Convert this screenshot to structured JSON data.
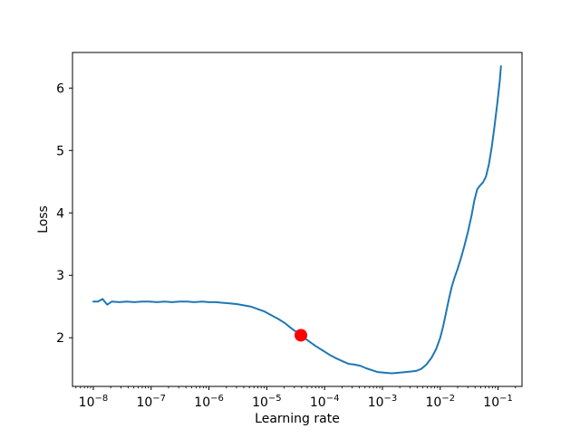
{
  "chart_data": {
    "type": "line",
    "title": "",
    "xlabel": "Learning rate",
    "ylabel": "Loss",
    "xscale": "log",
    "yscale": "linear",
    "grid": false,
    "legend": "none",
    "xlim_log10": [
      -8.36,
      -0.586
    ],
    "ylim": [
      1.22,
      6.57
    ],
    "xticks": [
      {
        "base": "10",
        "exp": "−8",
        "log10": -8
      },
      {
        "base": "10",
        "exp": "−7",
        "log10": -7
      },
      {
        "base": "10",
        "exp": "−6",
        "log10": -6
      },
      {
        "base": "10",
        "exp": "−5",
        "log10": -5
      },
      {
        "base": "10",
        "exp": "−4",
        "log10": -4
      },
      {
        "base": "10",
        "exp": "−3",
        "log10": -3
      },
      {
        "base": "10",
        "exp": "−2",
        "log10": -2
      },
      {
        "base": "10",
        "exp": "−1",
        "log10": -1
      }
    ],
    "yticks": [
      {
        "value": 2,
        "label": "2"
      },
      {
        "value": 3,
        "label": "3"
      },
      {
        "value": 4,
        "label": "4"
      },
      {
        "value": 5,
        "label": "5"
      },
      {
        "value": 6,
        "label": "6"
      }
    ],
    "line_color": "#1f77b4",
    "line_width": 2,
    "series_points_x_is_log10": true,
    "points": [
      [
        -8.0,
        2.58
      ],
      [
        -7.92,
        2.58
      ],
      [
        -7.84,
        2.62
      ],
      [
        -7.76,
        2.53
      ],
      [
        -7.68,
        2.58
      ],
      [
        -7.55,
        2.57
      ],
      [
        -7.42,
        2.58
      ],
      [
        -7.29,
        2.57
      ],
      [
        -7.16,
        2.58
      ],
      [
        -7.03,
        2.58
      ],
      [
        -6.9,
        2.57
      ],
      [
        -6.77,
        2.58
      ],
      [
        -6.64,
        2.57
      ],
      [
        -6.51,
        2.58
      ],
      [
        -6.38,
        2.58
      ],
      [
        -6.25,
        2.57
      ],
      [
        -6.12,
        2.58
      ],
      [
        -6.0,
        2.57
      ],
      [
        -5.88,
        2.57
      ],
      [
        -5.76,
        2.56
      ],
      [
        -5.64,
        2.55
      ],
      [
        -5.52,
        2.54
      ],
      [
        -5.4,
        2.52
      ],
      [
        -5.28,
        2.5
      ],
      [
        -5.16,
        2.46
      ],
      [
        -5.04,
        2.42
      ],
      [
        -4.92,
        2.36
      ],
      [
        -4.8,
        2.3
      ],
      [
        -4.68,
        2.23
      ],
      [
        -4.56,
        2.14
      ],
      [
        -4.41,
        2.04
      ],
      [
        -4.28,
        1.95
      ],
      [
        -4.16,
        1.87
      ],
      [
        -4.04,
        1.8
      ],
      [
        -3.92,
        1.73
      ],
      [
        -3.8,
        1.67
      ],
      [
        -3.68,
        1.62
      ],
      [
        -3.58,
        1.58
      ],
      [
        -3.48,
        1.57
      ],
      [
        -3.38,
        1.55
      ],
      [
        -3.28,
        1.51
      ],
      [
        -3.18,
        1.48
      ],
      [
        -3.08,
        1.45
      ],
      [
        -2.96,
        1.44
      ],
      [
        -2.84,
        1.43
      ],
      [
        -2.72,
        1.44
      ],
      [
        -2.6,
        1.45
      ],
      [
        -2.5,
        1.46
      ],
      [
        -2.41,
        1.47
      ],
      [
        -2.33,
        1.5
      ],
      [
        -2.24,
        1.57
      ],
      [
        -2.15,
        1.68
      ],
      [
        -2.07,
        1.82
      ],
      [
        -2.0,
        2.0
      ],
      [
        -1.95,
        2.18
      ],
      [
        -1.9,
        2.4
      ],
      [
        -1.85,
        2.62
      ],
      [
        -1.8,
        2.82
      ],
      [
        -1.75,
        2.97
      ],
      [
        -1.7,
        3.1
      ],
      [
        -1.64,
        3.28
      ],
      [
        -1.58,
        3.48
      ],
      [
        -1.52,
        3.7
      ],
      [
        -1.46,
        3.95
      ],
      [
        -1.41,
        4.2
      ],
      [
        -1.36,
        4.38
      ],
      [
        -1.31,
        4.44
      ],
      [
        -1.26,
        4.49
      ],
      [
        -1.21,
        4.58
      ],
      [
        -1.16,
        4.77
      ],
      [
        -1.11,
        5.05
      ],
      [
        -1.06,
        5.4
      ],
      [
        -1.01,
        5.78
      ],
      [
        -0.97,
        6.12
      ],
      [
        -0.95,
        6.35
      ]
    ],
    "marker": {
      "x_log10": -4.41,
      "loss": 2.04,
      "color": "#ff0000",
      "radius": 7
    },
    "spine_color": "#000000"
  }
}
